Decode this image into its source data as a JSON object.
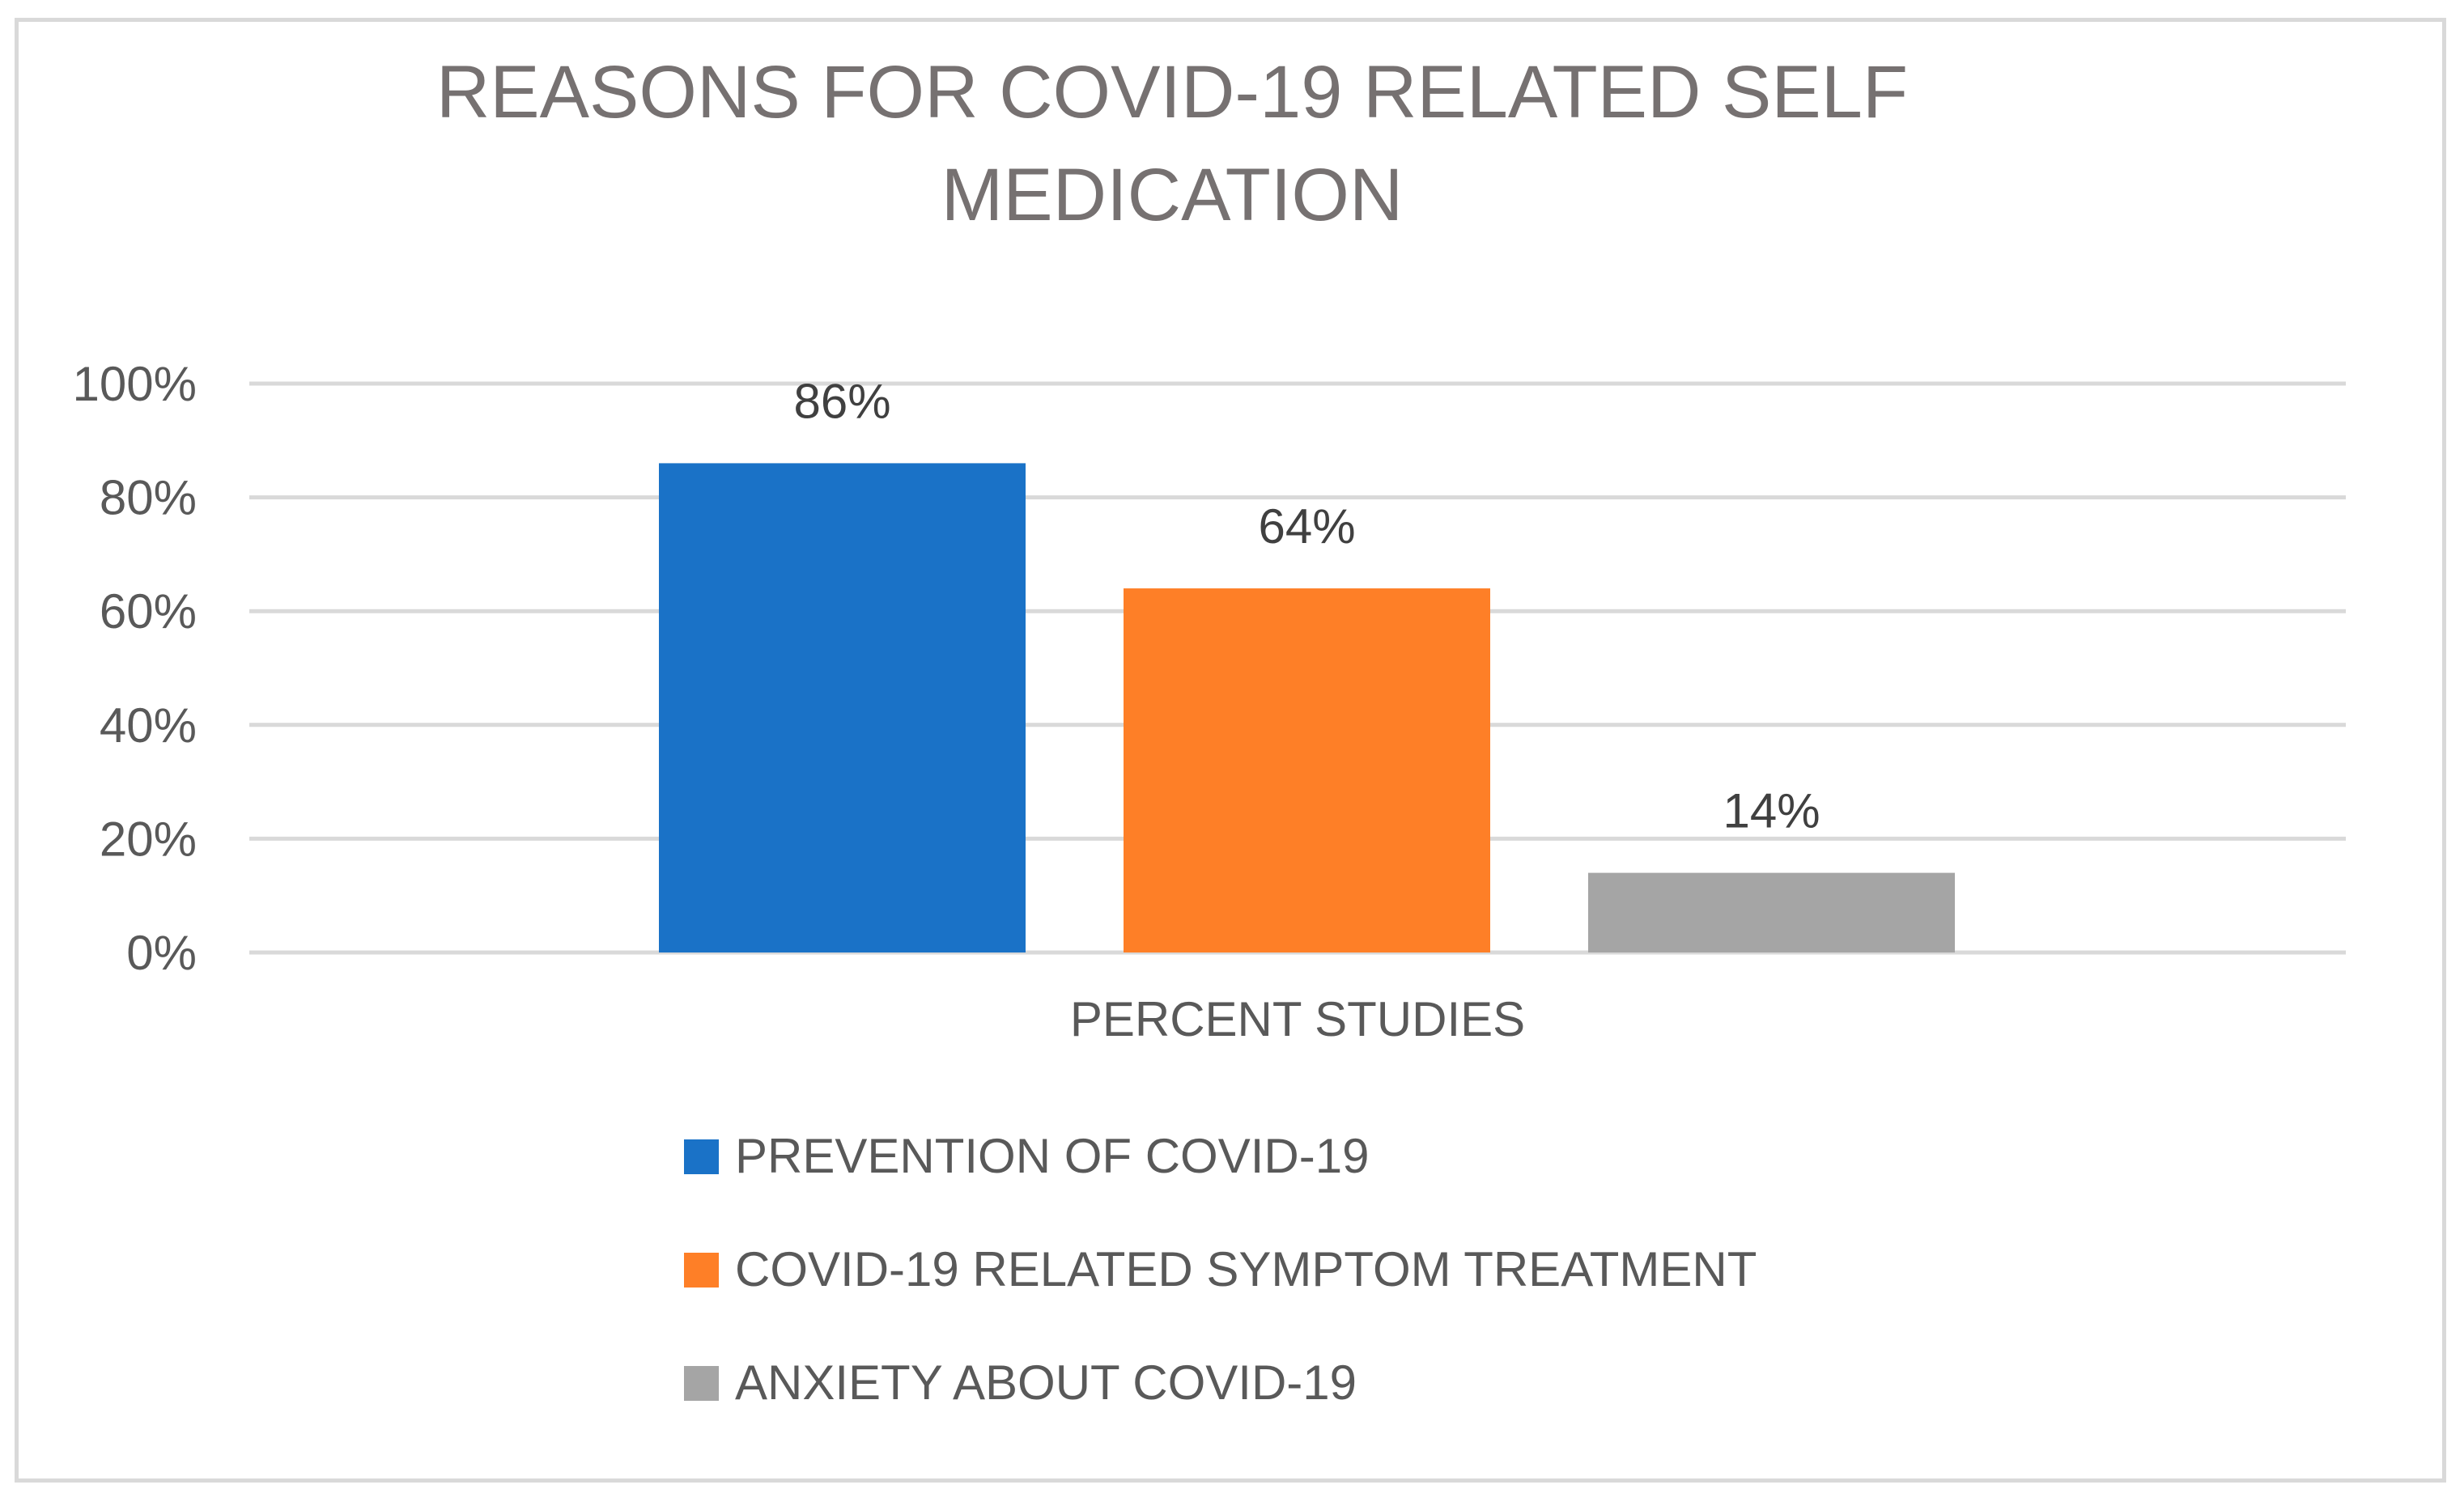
{
  "chart_data": {
    "type": "bar",
    "title": "REASONS FOR COVID-19 RELATED SELF MEDICATION",
    "title_lines": [
      "REASONS FOR COVID-19 RELATED SELF",
      "MEDICATION"
    ],
    "categories": [
      "PERCENT STUDIES"
    ],
    "series": [
      {
        "name": "PREVENTION OF COVID-19",
        "values": [
          86
        ],
        "label": "86%",
        "color": "#1a72c7"
      },
      {
        "name": "COVID-19 RELATED SYMPTOM TREATMENT",
        "values": [
          64
        ],
        "label": "64%",
        "color": "#fe7f27"
      },
      {
        "name": "ANXIETY ABOUT COVID-19",
        "values": [
          14
        ],
        "label": "14%",
        "color": "#a5a5a5"
      }
    ],
    "ylim": [
      0,
      100
    ],
    "yticks": [
      0,
      20,
      40,
      60,
      80,
      100
    ],
    "ytick_labels": [
      "0%",
      "20%",
      "40%",
      "60%",
      "80%",
      "100%"
    ],
    "xlabel": "",
    "ylabel": "",
    "grid": true,
    "legend": "bottom"
  }
}
